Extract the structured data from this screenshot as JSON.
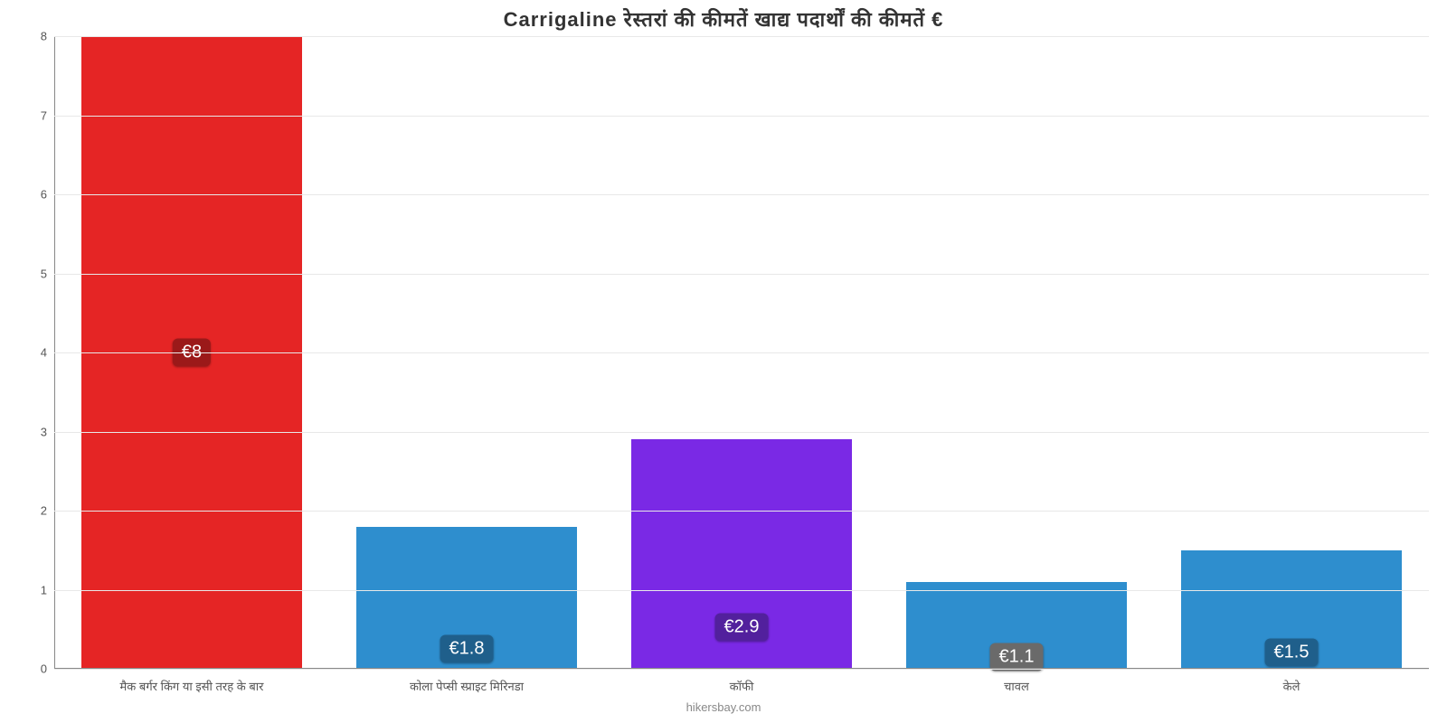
{
  "chart": {
    "type": "bar",
    "title": "Carrigaline रेस्तरां की कीमतें खाद्य पदार्थों की कीमतें €",
    "title_fontsize": 22,
    "title_color": "#333333",
    "background_color": "#ffffff",
    "grid_color": "#e8e8e8",
    "axis_color": "#888888",
    "tick_label_color": "#555555",
    "tick_label_fontsize": 13,
    "ylim": [
      0,
      8
    ],
    "ytick_step": 1,
    "bar_width": 0.8,
    "categories": [
      "मैक बर्गर किंग या इसी तरह के बार",
      "कोला पेप्सी स्प्राइट मिरिनडा",
      "कॉफी",
      "चावल",
      "केले"
    ],
    "values": [
      8,
      1.8,
      2.9,
      1.1,
      1.5
    ],
    "value_labels": [
      "€8",
      "€1.8",
      "€2.9",
      "€1.1",
      "€1.5"
    ],
    "bar_colors": [
      "#e52525",
      "#2e8ece",
      "#7a29e5",
      "#2e8ece",
      "#2e8ece"
    ],
    "badge_colors": [
      "#9b1919",
      "#1f5f8b",
      "#52209d",
      "#6a6a6a",
      "#1f5f8b"
    ],
    "badge_fontsize": 20,
    "credit": "hikersbay.com",
    "credit_color": "#888888",
    "credit_fontsize": 13
  }
}
